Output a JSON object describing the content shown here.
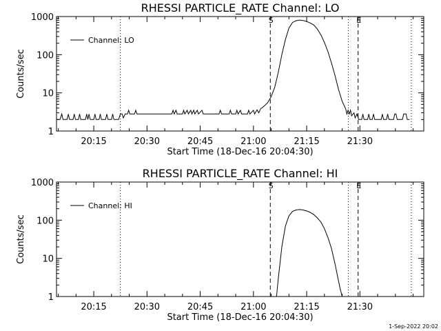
{
  "footer": "1-Sep-2022 20:02",
  "chart_data": [
    {
      "type": "line",
      "title": "RHESSI PARTICLE_RATE Channel: LO",
      "xlabel": "Start Time (18-Dec-16 20:04:30)",
      "ylabel": "Counts/sec",
      "y_scale": "log",
      "ylim": [
        1,
        1000
      ],
      "y_ticks": [
        "1",
        "10",
        "100",
        "1000"
      ],
      "xlim": [
        "20:04:30",
        "21:48:00"
      ],
      "x_ticks": [
        "20:15",
        "20:30",
        "20:45",
        "21:00",
        "21:15",
        "21:30"
      ],
      "legend": {
        "position": "top-left",
        "entry": "Channel: LO"
      },
      "markers": [
        {
          "label": "",
          "time": "20:22:30",
          "style": "dotted"
        },
        {
          "label": "S",
          "time": "21:04:45",
          "style": "dashed"
        },
        {
          "label": "",
          "time": "21:26:45",
          "style": "dotted"
        },
        {
          "label": "E",
          "time": "21:29:30",
          "style": "dashed"
        },
        {
          "label": "",
          "time": "21:44:30",
          "style": "dotted"
        }
      ],
      "series": [
        {
          "name": "Channel: LO",
          "points": [
            [
              "20:04:30",
              2
            ],
            [
              "20:05:30",
              2
            ],
            [
              "20:06:00",
              2.8
            ],
            [
              "20:06:20",
              2
            ],
            [
              "20:07:30",
              2
            ],
            [
              "20:07:50",
              2.8
            ],
            [
              "20:08:10",
              2
            ],
            [
              "20:09:10",
              2
            ],
            [
              "20:09:30",
              2.8
            ],
            [
              "20:09:50",
              2
            ],
            [
              "20:10:40",
              2
            ],
            [
              "20:11:00",
              2.8
            ],
            [
              "20:11:20",
              2
            ],
            [
              "20:12:40",
              2
            ],
            [
              "20:13:00",
              2.8
            ],
            [
              "20:13:20",
              2
            ],
            [
              "20:13:40",
              2.8
            ],
            [
              "20:14:00",
              2
            ],
            [
              "20:15:00",
              2
            ],
            [
              "20:15:20",
              2.8
            ],
            [
              "20:15:40",
              2
            ],
            [
              "20:16:30",
              2
            ],
            [
              "20:16:50",
              2.8
            ],
            [
              "20:17:10",
              2
            ],
            [
              "20:18:20",
              2
            ],
            [
              "20:18:40",
              2.8
            ],
            [
              "20:19:00",
              2
            ],
            [
              "20:20:00",
              2
            ],
            [
              "20:20:20",
              2.8
            ],
            [
              "20:20:40",
              2
            ],
            [
              "20:22:00",
              2
            ],
            [
              "20:22:30",
              2.8
            ],
            [
              "20:23:00",
              2.8
            ],
            [
              "20:23:20",
              2.2
            ],
            [
              "20:23:50",
              2.8
            ],
            [
              "20:24:30",
              2.8
            ],
            [
              "20:24:50",
              3.5
            ],
            [
              "20:25:10",
              2.8
            ],
            [
              "20:26:30",
              2.8
            ],
            [
              "20:26:50",
              3.5
            ],
            [
              "20:27:10",
              2.8
            ],
            [
              "20:37:00",
              2.8
            ],
            [
              "20:37:20",
              3.5
            ],
            [
              "20:37:40",
              2.8
            ],
            [
              "20:38:10",
              3.5
            ],
            [
              "20:38:30",
              2.8
            ],
            [
              "20:40:00",
              2.8
            ],
            [
              "20:40:20",
              3.5
            ],
            [
              "20:40:40",
              2.8
            ],
            [
              "20:41:20",
              3.5
            ],
            [
              "20:41:40",
              2.8
            ],
            [
              "20:42:20",
              3.5
            ],
            [
              "20:42:40",
              2.8
            ],
            [
              "20:43:10",
              3.5
            ],
            [
              "20:43:30",
              2.8
            ],
            [
              "20:44:10",
              3.5
            ],
            [
              "20:44:30",
              2.8
            ],
            [
              "20:45:30",
              3.5
            ],
            [
              "20:45:50",
              2.8
            ],
            [
              "20:50:20",
              2.8
            ],
            [
              "20:50:40",
              3.5
            ],
            [
              "20:51:00",
              2.8
            ],
            [
              "20:53:10",
              2.8
            ],
            [
              "20:53:30",
              3.5
            ],
            [
              "20:53:50",
              2.8
            ],
            [
              "20:55:00",
              2.8
            ],
            [
              "20:55:20",
              3.5
            ],
            [
              "20:55:40",
              2.8
            ],
            [
              "20:56:20",
              3.5
            ],
            [
              "20:56:40",
              2.8
            ],
            [
              "20:58:20",
              2.8
            ],
            [
              "20:58:40",
              3.5
            ],
            [
              "20:59:00",
              2.8
            ],
            [
              "21:00:00",
              3.5
            ],
            [
              "21:00:20",
              2.8
            ],
            [
              "21:01:00",
              3.6
            ],
            [
              "21:01:30",
              3
            ],
            [
              "21:02:00",
              3.8
            ],
            [
              "21:03:00",
              4.5
            ],
            [
              "21:04:00",
              5.5
            ],
            [
              "21:05:00",
              8
            ],
            [
              "21:06:00",
              14
            ],
            [
              "21:07:00",
              35
            ],
            [
              "21:08:00",
              100
            ],
            [
              "21:09:00",
              250
            ],
            [
              "21:10:00",
              500
            ],
            [
              "21:11:00",
              700
            ],
            [
              "21:12:00",
              780
            ],
            [
              "21:13:00",
              810
            ],
            [
              "21:14:00",
              790
            ],
            [
              "21:15:00",
              740
            ],
            [
              "21:16:00",
              680
            ],
            [
              "21:17:00",
              600
            ],
            [
              "21:18:00",
              470
            ],
            [
              "21:19:00",
              330
            ],
            [
              "21:20:00",
              210
            ],
            [
              "21:21:00",
              120
            ],
            [
              "21:22:00",
              60
            ],
            [
              "21:23:00",
              28
            ],
            [
              "21:24:00",
              12
            ],
            [
              "21:25:00",
              6
            ],
            [
              "21:26:00",
              3.8
            ],
            [
              "21:26:20",
              2.8
            ],
            [
              "21:26:40",
              3.5
            ],
            [
              "21:27:00",
              2.8
            ],
            [
              "21:27:20",
              3.5
            ],
            [
              "21:27:40",
              2.5
            ],
            [
              "21:28:20",
              3
            ],
            [
              "21:28:40",
              2.2
            ],
            [
              "21:29:10",
              2.8
            ],
            [
              "21:29:40",
              2
            ],
            [
              "21:30:30",
              2
            ],
            [
              "21:30:50",
              2.8
            ],
            [
              "21:31:10",
              2
            ],
            [
              "21:32:10",
              2
            ],
            [
              "21:32:30",
              2.8
            ],
            [
              "21:32:50",
              2
            ],
            [
              "21:33:30",
              2
            ],
            [
              "21:33:50",
              2.8
            ],
            [
              "21:34:10",
              2
            ],
            [
              "21:36:00",
              2
            ],
            [
              "21:36:20",
              2.8
            ],
            [
              "21:36:40",
              2
            ],
            [
              "21:37:30",
              2
            ],
            [
              "21:37:50",
              2.8
            ],
            [
              "21:38:10",
              2
            ],
            [
              "21:39:30",
              2
            ],
            [
              "21:39:50",
              2.8
            ],
            [
              "21:40:10",
              2.8
            ],
            [
              "21:40:30",
              2
            ],
            [
              "21:42:00",
              2
            ],
            [
              "21:42:20",
              2.8
            ],
            [
              "21:43:00",
              2.8
            ],
            [
              "21:43:20",
              2
            ],
            [
              "21:44:00",
              2
            ]
          ]
        }
      ]
    },
    {
      "type": "line",
      "title": "RHESSI PARTICLE_RATE Channel: HI",
      "xlabel": "Start Time (18-Dec-16 20:04:30)",
      "ylabel": "Counts/sec",
      "y_scale": "log",
      "ylim": [
        1,
        1000
      ],
      "y_ticks": [
        "1",
        "10",
        "100",
        "1000"
      ],
      "xlim": [
        "20:04:30",
        "21:48:00"
      ],
      "x_ticks": [
        "20:15",
        "20:30",
        "20:45",
        "21:00",
        "21:15",
        "21:30"
      ],
      "legend": {
        "position": "top-left",
        "entry": "Channel: HI"
      },
      "markers": [
        {
          "label": "",
          "time": "20:22:30",
          "style": "dotted"
        },
        {
          "label": "S",
          "time": "21:04:45",
          "style": "dashed"
        },
        {
          "label": "",
          "time": "21:26:45",
          "style": "dotted"
        },
        {
          "label": "E",
          "time": "21:29:30",
          "style": "dashed"
        },
        {
          "label": "",
          "time": "21:44:30",
          "style": "dotted"
        }
      ],
      "series": [
        {
          "name": "Channel: HI",
          "points": [
            [
              "21:06:30",
              1
            ],
            [
              "21:07:00",
              3
            ],
            [
              "21:08:00",
              20
            ],
            [
              "21:09:00",
              70
            ],
            [
              "21:10:00",
              130
            ],
            [
              "21:11:00",
              170
            ],
            [
              "21:12:00",
              185
            ],
            [
              "21:13:00",
              190
            ],
            [
              "21:14:00",
              185
            ],
            [
              "21:15:00",
              175
            ],
            [
              "21:16:00",
              160
            ],
            [
              "21:17:00",
              140
            ],
            [
              "21:18:00",
              115
            ],
            [
              "21:19:00",
              90
            ],
            [
              "21:20:00",
              60
            ],
            [
              "21:21:00",
              35
            ],
            [
              "21:22:00",
              18
            ],
            [
              "21:23:00",
              7
            ],
            [
              "21:24:00",
              2.5
            ],
            [
              "21:24:30",
              1.5
            ],
            [
              "21:25:00",
              1
            ]
          ]
        }
      ]
    }
  ]
}
